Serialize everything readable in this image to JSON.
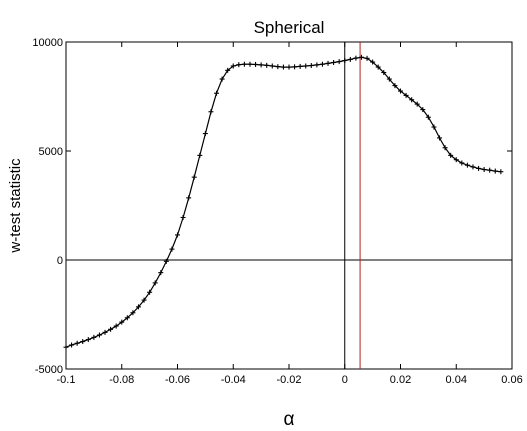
{
  "chart_data": {
    "type": "line",
    "title": "Spherical",
    "xlabel": "α",
    "ylabel": "w-test statistic",
    "xlim": [
      -0.1,
      0.06
    ],
    "ylim": [
      -5000,
      10000
    ],
    "xticks": [
      "-0.1",
      "-0.08",
      "-0.06",
      "-0.04",
      "-0.02",
      "0",
      "0.02",
      "0.04",
      "0.06"
    ],
    "yticks": [
      "-5000",
      "0",
      "5000",
      "10000"
    ],
    "grid": false,
    "legend": "none",
    "reference_lines": [
      {
        "orientation": "horizontal",
        "value": 0,
        "color": "#000000"
      },
      {
        "orientation": "vertical",
        "value": 0,
        "color": "#000000"
      },
      {
        "orientation": "vertical",
        "value": 0.0055,
        "color": "#b22222"
      }
    ],
    "series": [
      {
        "color": "#000000",
        "marker": "plus",
        "x": [
          -0.1,
          -0.098,
          -0.096,
          -0.094,
          -0.092,
          -0.09,
          -0.088,
          -0.086,
          -0.084,
          -0.082,
          -0.08,
          -0.078,
          -0.076,
          -0.074,
          -0.072,
          -0.07,
          -0.068,
          -0.066,
          -0.064,
          -0.062,
          -0.06,
          -0.058,
          -0.056,
          -0.054,
          -0.052,
          -0.05,
          -0.048,
          -0.046,
          -0.044,
          -0.042,
          -0.04,
          -0.038,
          -0.036,
          -0.034,
          -0.032,
          -0.03,
          -0.028,
          -0.026,
          -0.024,
          -0.022,
          -0.02,
          -0.018,
          -0.016,
          -0.014,
          -0.012,
          -0.01,
          -0.008,
          -0.006,
          -0.004,
          -0.002,
          0,
          0.002,
          0.004,
          0.006,
          0.008,
          0.01,
          0.012,
          0.014,
          0.016,
          0.018,
          0.02,
          0.022,
          0.024,
          0.026,
          0.028,
          0.03,
          0.032,
          0.034,
          0.036,
          0.038,
          0.04,
          0.042,
          0.044,
          0.046,
          0.048,
          0.05,
          0.052,
          0.054,
          0.056
        ],
        "y": [
          -4000,
          -3900,
          -3820,
          -3740,
          -3650,
          -3550,
          -3440,
          -3320,
          -3180,
          -3030,
          -2850,
          -2650,
          -2420,
          -2150,
          -1840,
          -1480,
          -1050,
          -580,
          -60,
          500,
          1150,
          1950,
          2850,
          3800,
          4800,
          5800,
          6800,
          7650,
          8300,
          8700,
          8900,
          8960,
          8980,
          8980,
          8970,
          8950,
          8930,
          8900,
          8870,
          8850,
          8850,
          8860,
          8880,
          8900,
          8920,
          8950,
          8980,
          9020,
          9060,
          9100,
          9150,
          9200,
          9260,
          9300,
          9250,
          9080,
          8850,
          8600,
          8300,
          8000,
          7750,
          7550,
          7350,
          7150,
          6900,
          6550,
          6100,
          5600,
          5150,
          4800,
          4600,
          4450,
          4350,
          4270,
          4200,
          4150,
          4120,
          4080,
          4050
        ]
      }
    ]
  }
}
